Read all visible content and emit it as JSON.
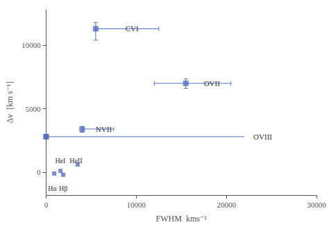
{
  "chart_data": {
    "type": "scatter",
    "xlabel": "FWHM  kms⁻¹",
    "ylabel": "Δv  [km s⁻¹]",
    "xlim": [
      0,
      30000
    ],
    "ylim": [
      -1800,
      12800
    ],
    "xticks": [
      0,
      10000,
      20000,
      30000
    ],
    "yticks": [
      0,
      5000,
      10000
    ],
    "grid": false,
    "marker": "square",
    "points": [
      {
        "label": "CVI",
        "x": 5500,
        "y": 11300,
        "xerr": [
          0,
          7000
        ],
        "yerr": [
          900,
          500
        ],
        "label_x": 8800,
        "label_y": 11300
      },
      {
        "label": "OVII",
        "x": 15500,
        "y": 7000,
        "xerr": [
          3500,
          5000
        ],
        "yerr": [
          400,
          350
        ],
        "label_x": 17500,
        "label_y": 7000
      },
      {
        "label": "NVII",
        "x": 4000,
        "y": 3400,
        "xerr": [
          0,
          3500
        ],
        "yerr": [
          250,
          200
        ],
        "label_x": 5500,
        "label_y": 3400
      }
    ],
    "line": {
      "label": "OVIII",
      "y": 2800,
      "x": [
        0,
        22000
      ],
      "label_x": 23000,
      "label_y": 2800
    },
    "small_points": [
      {
        "label": "Hα",
        "x": 900,
        "y": -100,
        "label_x": 700,
        "label_y": -1300
      },
      {
        "label": "Hβ",
        "x": 1900,
        "y": -200,
        "label_x": 1900,
        "label_y": -1300
      },
      {
        "label": "HeI",
        "x": 1600,
        "y": 100,
        "label_x": 1000,
        "label_y": 900
      },
      {
        "label": "HeII",
        "x": 3500,
        "y": 600,
        "label_x": 2600,
        "label_y": 900
      }
    ]
  }
}
